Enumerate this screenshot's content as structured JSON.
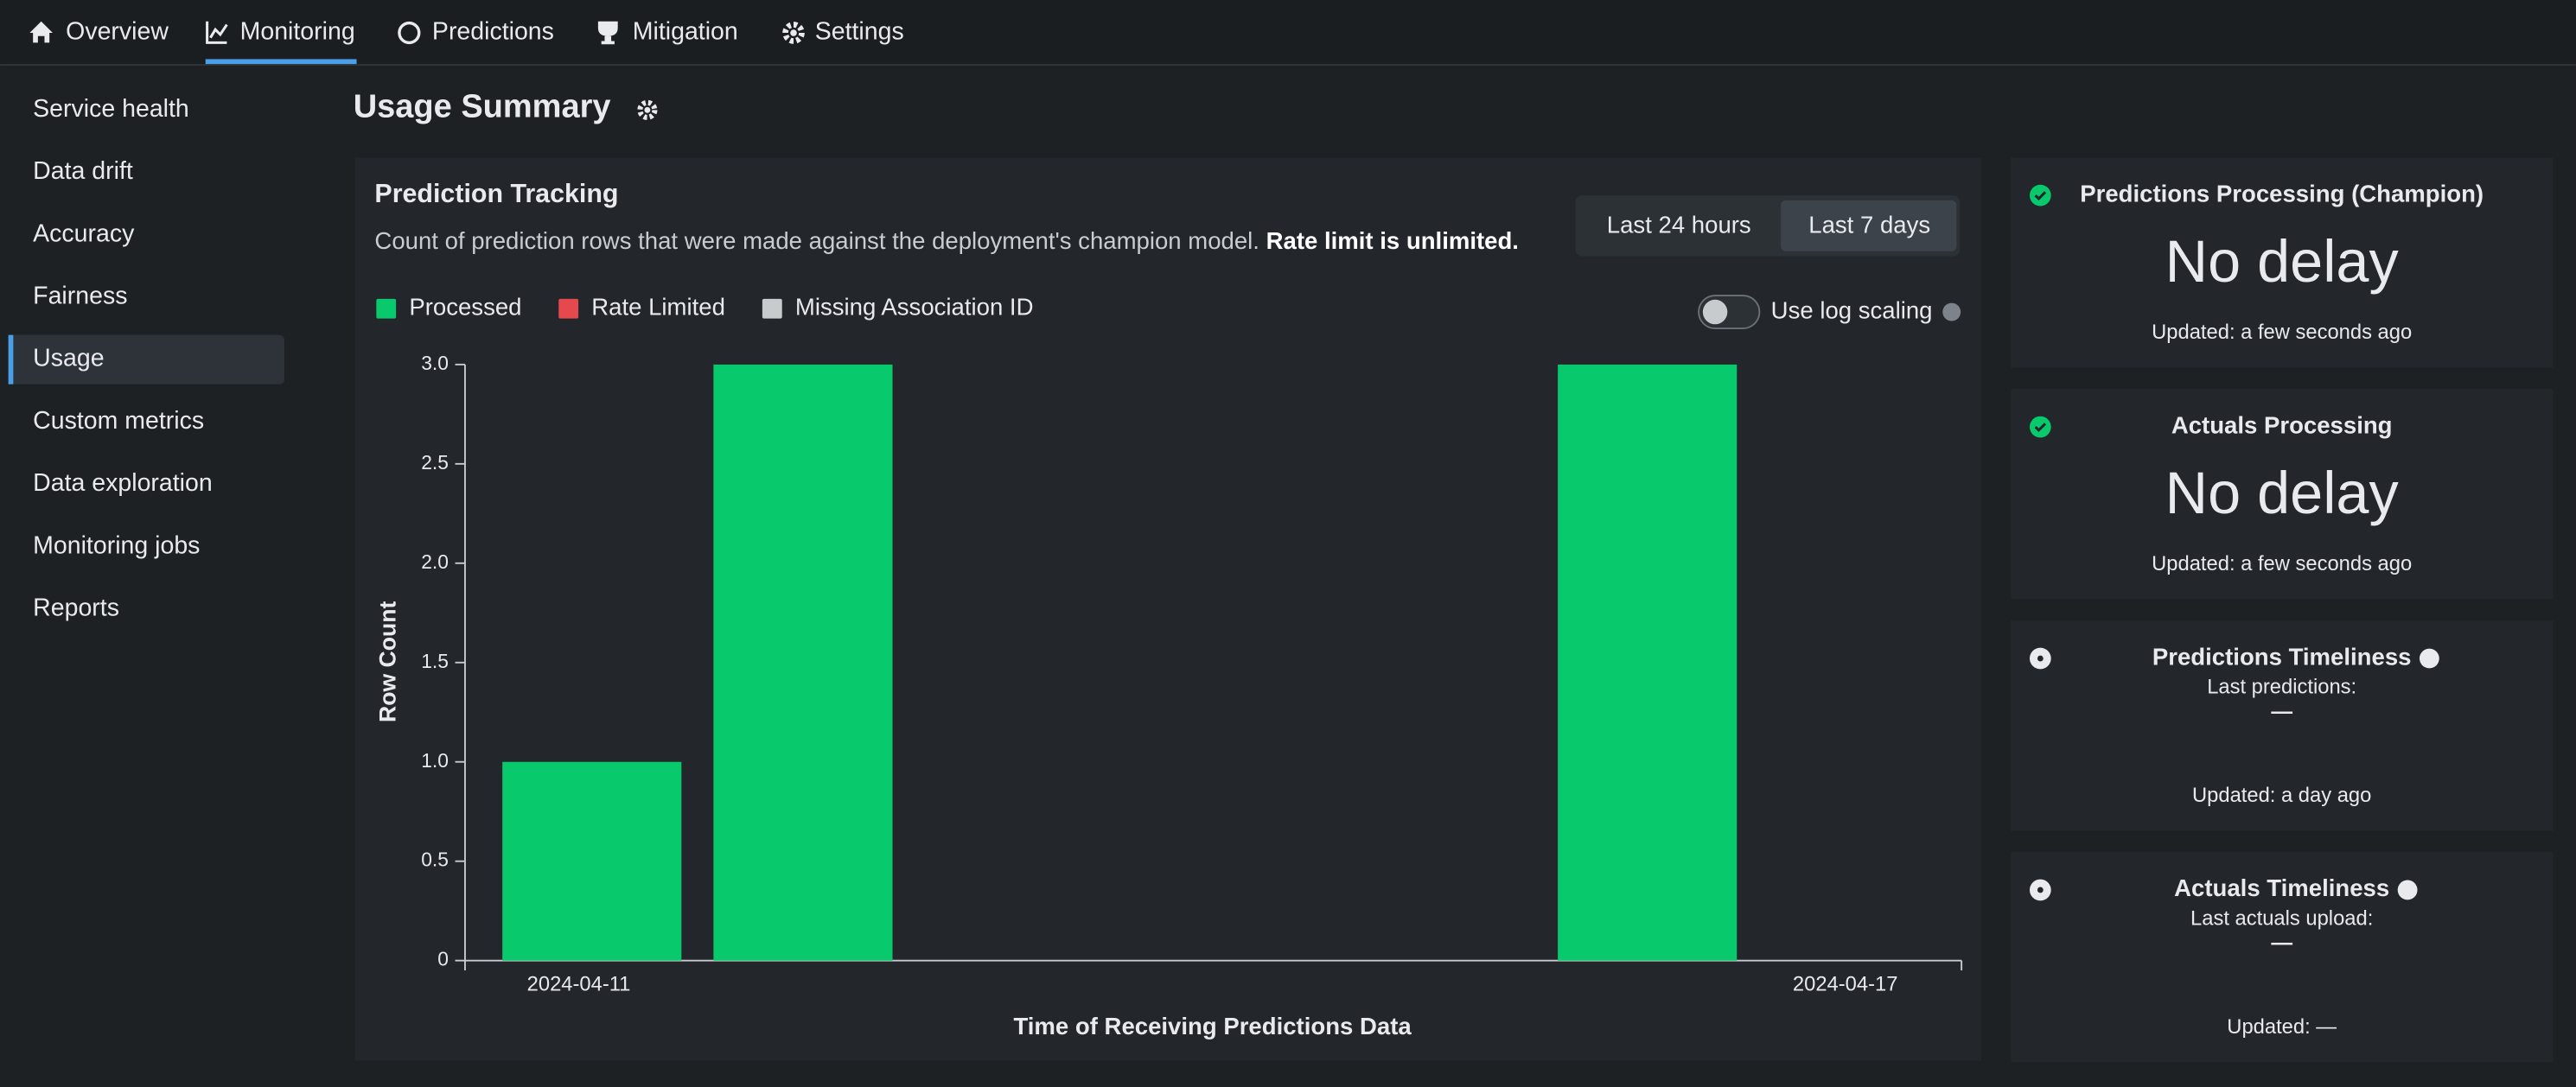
{
  "nav": [
    "Overview",
    "Monitoring",
    "Predictions",
    "Mitigation",
    "Settings"
  ],
  "sidebar": [
    "Service health",
    "Data drift",
    "Accuracy",
    "Fairness",
    "Usage",
    "Custom metrics",
    "Data exploration",
    "Monitoring jobs",
    "Reports"
  ],
  "page_title": "Usage Summary",
  "panel": {
    "title": "Prediction Tracking",
    "description": "Count of prediction rows that were made against the deployment's champion model.",
    "description_bold": "Rate limit is unlimited.",
    "range_buttons": [
      "Last 24 hours",
      "Last 7 days"
    ],
    "log_scaling": "Use log scaling"
  },
  "chart_data": {
    "type": "bar",
    "stacked": true,
    "x_label": "Time of Receiving Predictions Data",
    "y_label": "Row Count",
    "categories": [
      "2024-04-11",
      null,
      null,
      null,
      null,
      null,
      "2024-04-17"
    ],
    "series": [
      {
        "name": "Processed",
        "color": "#08c96c",
        "values": [
          1,
          3,
          0,
          0,
          0,
          3,
          0
        ]
      },
      {
        "name": "Rate Limited",
        "color": "#e5484d",
        "values": [
          0,
          0,
          0,
          0,
          0,
          0,
          0
        ]
      },
      {
        "name": "Missing Association ID",
        "color": "#c8cbce",
        "values": [
          0,
          0,
          0,
          0,
          0,
          0,
          0
        ]
      }
    ],
    "ylim": [
      0,
      3
    ],
    "yticks": [
      0,
      0.5,
      {
        "value": 1,
        "label": "1.0"
      },
      1.5,
      {
        "value": 2,
        "label": "2.0"
      },
      2.5,
      {
        "value": 3,
        "label": "3.0"
      }
    ],
    "grid": false
  },
  "status_cards": [
    {
      "title": "Predictions Processing (Champion)",
      "value": "No delay",
      "updated": "Updated: a few seconds ago"
    },
    {
      "title": "Actuals Processing",
      "value": "No delay",
      "updated": "Updated: a few seconds ago"
    },
    {
      "title": "Predictions Timeliness",
      "label": "Last predictions:",
      "value": "—",
      "updated": "Updated: a day ago"
    },
    {
      "title": "Actuals Timeliness",
      "label": "Last actuals upload:",
      "value": "—",
      "updated": "Updated: —"
    }
  ]
}
